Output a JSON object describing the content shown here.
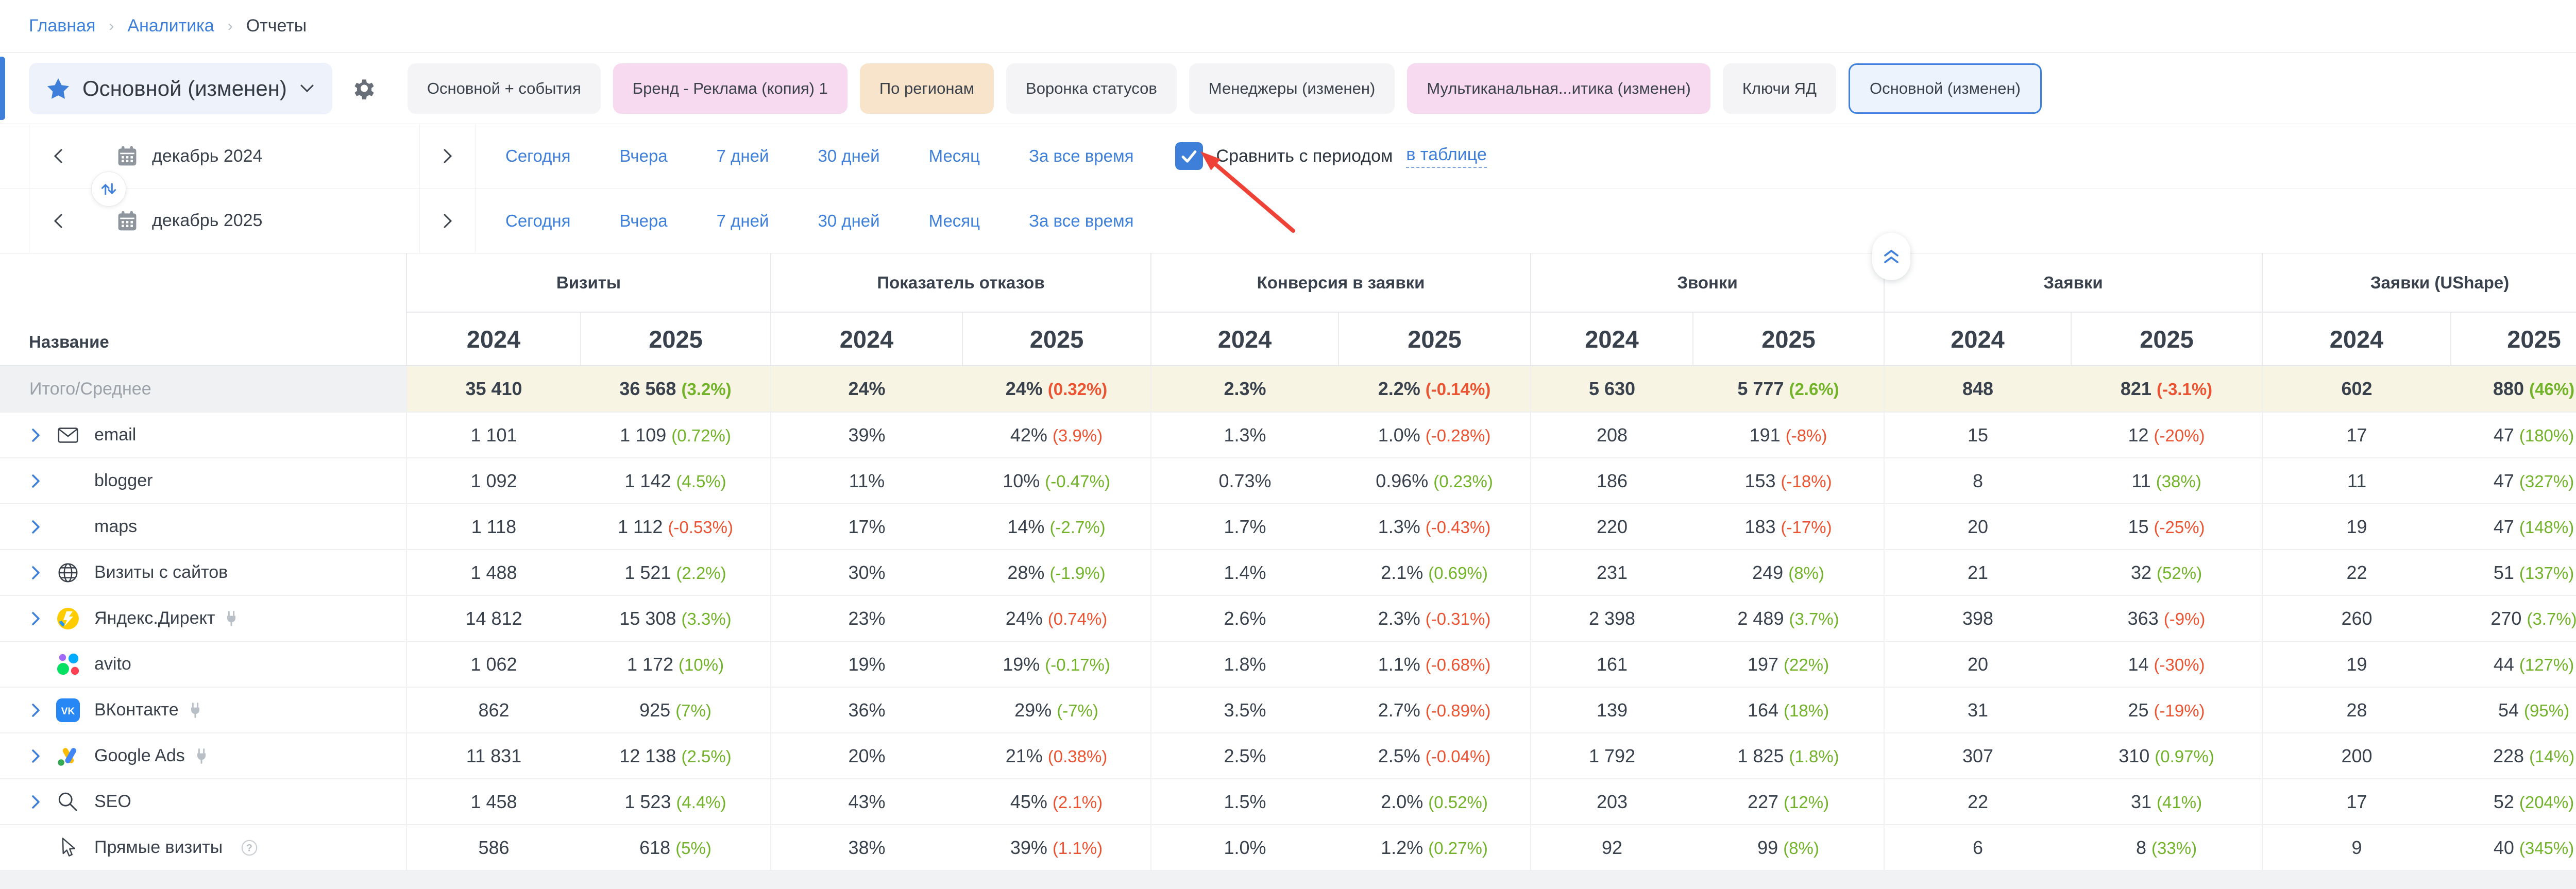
{
  "breadcrumb": {
    "separator": "›",
    "items": [
      {
        "label": "Главная"
      },
      {
        "label": "Аналитика"
      },
      {
        "label": "Отчеты"
      }
    ]
  },
  "toolbar": {
    "report_switcher": {
      "label": "Основной (изменен)"
    },
    "tabs": [
      {
        "label": "Основной + события",
        "style": "default"
      },
      {
        "label": "Бренд - Реклама (копия) 1",
        "style": "pink"
      },
      {
        "label": "По регионам",
        "style": "peach"
      },
      {
        "label": "Воронка статусов",
        "style": "default"
      },
      {
        "label": "Менеджеры (изменен)",
        "style": "default"
      },
      {
        "label": "Мультиканальная...итика (изменен)",
        "style": "pink"
      },
      {
        "label": "Ключи ЯД",
        "style": "default"
      },
      {
        "label": "Основной (изменен)",
        "style": "selected"
      }
    ]
  },
  "date_panel": {
    "rows": [
      {
        "period": "декабрь 2024"
      },
      {
        "period": "декабрь 2025"
      }
    ],
    "quick_links": [
      "Сегодня",
      "Вчера",
      "7 дней",
      "30 дней",
      "Месяц",
      "За все время"
    ],
    "compare": {
      "checked": true,
      "label": "Сравнить с периодом",
      "link_label": "в таблице"
    }
  },
  "table": {
    "name_header": "Название",
    "years": [
      "2024",
      "2025"
    ],
    "groups": [
      {
        "label": "Визиты"
      },
      {
        "label": "Показатель отказов"
      },
      {
        "label": "Конверсия в заявки"
      },
      {
        "label": "Звонки"
      },
      {
        "label": "Заявки"
      },
      {
        "label": "Заявки (UShape)"
      }
    ],
    "total_row": {
      "label": "Итого/Среднее",
      "expandable": false,
      "icon": null,
      "plug": false,
      "help": false,
      "metrics": [
        {
          "v24": "35 410",
          "v25": "36 568",
          "pct": "3.2%",
          "trend": "g"
        },
        {
          "v24": "24%",
          "v25": "24%",
          "pct": "0.32%",
          "trend": "r"
        },
        {
          "v24": "2.3%",
          "v25": "2.2%",
          "pct": "-0.14%",
          "trend": "r"
        },
        {
          "v24": "5 630",
          "v25": "5 777",
          "pct": "2.6%",
          "trend": "g"
        },
        {
          "v24": "848",
          "v25": "821",
          "pct": "-3.1%",
          "trend": "r"
        },
        {
          "v24": "602",
          "v25": "880",
          "pct": "46%",
          "trend": "g"
        }
      ]
    },
    "rows": [
      {
        "label": "email",
        "expandable": true,
        "icon": "email-icon",
        "plug": false,
        "help": false,
        "metrics": [
          {
            "v24": "1 101",
            "v25": "1 109",
            "pct": "0.72%",
            "trend": "g"
          },
          {
            "v24": "39%",
            "v25": "42%",
            "pct": "3.9%",
            "trend": "r"
          },
          {
            "v24": "1.3%",
            "v25": "1.0%",
            "pct": "-0.28%",
            "trend": "r"
          },
          {
            "v24": "208",
            "v25": "191",
            "pct": "-8%",
            "trend": "r"
          },
          {
            "v24": "15",
            "v25": "12",
            "pct": "-20%",
            "trend": "r"
          },
          {
            "v24": "17",
            "v25": "47",
            "pct": "180%",
            "trend": "g"
          }
        ]
      },
      {
        "label": "blogger",
        "expandable": true,
        "icon": null,
        "plug": false,
        "help": false,
        "metrics": [
          {
            "v24": "1 092",
            "v25": "1 142",
            "pct": "4.5%",
            "trend": "g"
          },
          {
            "v24": "11%",
            "v25": "10%",
            "pct": "-0.47%",
            "trend": "g"
          },
          {
            "v24": "0.73%",
            "v25": "0.96%",
            "pct": "0.23%",
            "trend": "g"
          },
          {
            "v24": "186",
            "v25": "153",
            "pct": "-18%",
            "trend": "r"
          },
          {
            "v24": "8",
            "v25": "11",
            "pct": "38%",
            "trend": "g"
          },
          {
            "v24": "11",
            "v25": "47",
            "pct": "327%",
            "trend": "g"
          }
        ]
      },
      {
        "label": "maps",
        "expandable": true,
        "icon": null,
        "plug": false,
        "help": false,
        "metrics": [
          {
            "v24": "1 118",
            "v25": "1 112",
            "pct": "-0.53%",
            "trend": "r"
          },
          {
            "v24": "17%",
            "v25": "14%",
            "pct": "-2.7%",
            "trend": "g"
          },
          {
            "v24": "1.7%",
            "v25": "1.3%",
            "pct": "-0.43%",
            "trend": "r"
          },
          {
            "v24": "220",
            "v25": "183",
            "pct": "-17%",
            "trend": "r"
          },
          {
            "v24": "20",
            "v25": "15",
            "pct": "-25%",
            "trend": "r"
          },
          {
            "v24": "19",
            "v25": "47",
            "pct": "148%",
            "trend": "g"
          }
        ]
      },
      {
        "label": "Визиты с сайтов",
        "expandable": true,
        "icon": "globe-icon",
        "plug": false,
        "help": false,
        "metrics": [
          {
            "v24": "1 488",
            "v25": "1 521",
            "pct": "2.2%",
            "trend": "g"
          },
          {
            "v24": "30%",
            "v25": "28%",
            "pct": "-1.9%",
            "trend": "g"
          },
          {
            "v24": "1.4%",
            "v25": "2.1%",
            "pct": "0.69%",
            "trend": "g"
          },
          {
            "v24": "231",
            "v25": "249",
            "pct": "8%",
            "trend": "g"
          },
          {
            "v24": "21",
            "v25": "32",
            "pct": "52%",
            "trend": "g"
          },
          {
            "v24": "22",
            "v25": "51",
            "pct": "137%",
            "trend": "g"
          }
        ]
      },
      {
        "label": "Яндекс.Директ",
        "expandable": true,
        "icon": "yandex-direct-icon",
        "plug": true,
        "help": false,
        "metrics": [
          {
            "v24": "14 812",
            "v25": "15 308",
            "pct": "3.3%",
            "trend": "g"
          },
          {
            "v24": "23%",
            "v25": "24%",
            "pct": "0.74%",
            "trend": "r"
          },
          {
            "v24": "2.6%",
            "v25": "2.3%",
            "pct": "-0.31%",
            "trend": "r"
          },
          {
            "v24": "2 398",
            "v25": "2 489",
            "pct": "3.7%",
            "trend": "g"
          },
          {
            "v24": "398",
            "v25": "363",
            "pct": "-9%",
            "trend": "r"
          },
          {
            "v24": "260",
            "v25": "270",
            "pct": "3.7%",
            "trend": "g"
          }
        ]
      },
      {
        "label": "avito",
        "expandable": false,
        "icon": "avito-icon",
        "plug": false,
        "help": false,
        "metrics": [
          {
            "v24": "1 062",
            "v25": "1 172",
            "pct": "10%",
            "trend": "g"
          },
          {
            "v24": "19%",
            "v25": "19%",
            "pct": "-0.17%",
            "trend": "g"
          },
          {
            "v24": "1.8%",
            "v25": "1.1%",
            "pct": "-0.68%",
            "trend": "r"
          },
          {
            "v24": "161",
            "v25": "197",
            "pct": "22%",
            "trend": "g"
          },
          {
            "v24": "20",
            "v25": "14",
            "pct": "-30%",
            "trend": "r"
          },
          {
            "v24": "19",
            "v25": "44",
            "pct": "127%",
            "trend": "g"
          }
        ]
      },
      {
        "label": "ВКонтакте",
        "expandable": true,
        "icon": "vk-icon",
        "plug": true,
        "help": false,
        "metrics": [
          {
            "v24": "862",
            "v25": "925",
            "pct": "7%",
            "trend": "g"
          },
          {
            "v24": "36%",
            "v25": "29%",
            "pct": "-7%",
            "trend": "g"
          },
          {
            "v24": "3.5%",
            "v25": "2.7%",
            "pct": "-0.89%",
            "trend": "r"
          },
          {
            "v24": "139",
            "v25": "164",
            "pct": "18%",
            "trend": "g"
          },
          {
            "v24": "31",
            "v25": "25",
            "pct": "-19%",
            "trend": "r"
          },
          {
            "v24": "28",
            "v25": "54",
            "pct": "95%",
            "trend": "g"
          }
        ]
      },
      {
        "label": "Google Ads",
        "expandable": true,
        "icon": "google-ads-icon",
        "plug": true,
        "help": false,
        "metrics": [
          {
            "v24": "11 831",
            "v25": "12 138",
            "pct": "2.5%",
            "trend": "g"
          },
          {
            "v24": "20%",
            "v25": "21%",
            "pct": "0.38%",
            "trend": "r"
          },
          {
            "v24": "2.5%",
            "v25": "2.5%",
            "pct": "-0.04%",
            "trend": "r"
          },
          {
            "v24": "1 792",
            "v25": "1 825",
            "pct": "1.8%",
            "trend": "g"
          },
          {
            "v24": "307",
            "v25": "310",
            "pct": "0.97%",
            "trend": "g"
          },
          {
            "v24": "200",
            "v25": "228",
            "pct": "14%",
            "trend": "g"
          }
        ]
      },
      {
        "label": "SEO",
        "expandable": true,
        "icon": "search-icon",
        "plug": false,
        "help": false,
        "metrics": [
          {
            "v24": "1 458",
            "v25": "1 523",
            "pct": "4.4%",
            "trend": "g"
          },
          {
            "v24": "43%",
            "v25": "45%",
            "pct": "2.1%",
            "trend": "r"
          },
          {
            "v24": "1.5%",
            "v25": "2.0%",
            "pct": "0.52%",
            "trend": "g"
          },
          {
            "v24": "203",
            "v25": "227",
            "pct": "12%",
            "trend": "g"
          },
          {
            "v24": "22",
            "v25": "31",
            "pct": "41%",
            "trend": "g"
          },
          {
            "v24": "17",
            "v25": "52",
            "pct": "204%",
            "trend": "g"
          }
        ]
      },
      {
        "label": "Прямые визиты",
        "expandable": false,
        "icon": "cursor-icon",
        "plug": false,
        "help": true,
        "metrics": [
          {
            "v24": "586",
            "v25": "618",
            "pct": "5%",
            "trend": "g"
          },
          {
            "v24": "38%",
            "v25": "39%",
            "pct": "1.1%",
            "trend": "r"
          },
          {
            "v24": "1.0%",
            "v25": "1.2%",
            "pct": "0.27%",
            "trend": "g"
          },
          {
            "v24": "92",
            "v25": "99",
            "pct": "8%",
            "trend": "g"
          },
          {
            "v24": "6",
            "v25": "8",
            "pct": "33%",
            "trend": "g"
          },
          {
            "v24": "9",
            "v25": "40",
            "pct": "345%",
            "trend": "g"
          }
        ]
      }
    ]
  },
  "colors": {
    "accent_blue": "#3d7fd9",
    "positive_green": "#72b32a",
    "negative_red": "#eb5433",
    "total_row_bg": "#f7f4e3",
    "annotation_red": "#ee4237"
  }
}
